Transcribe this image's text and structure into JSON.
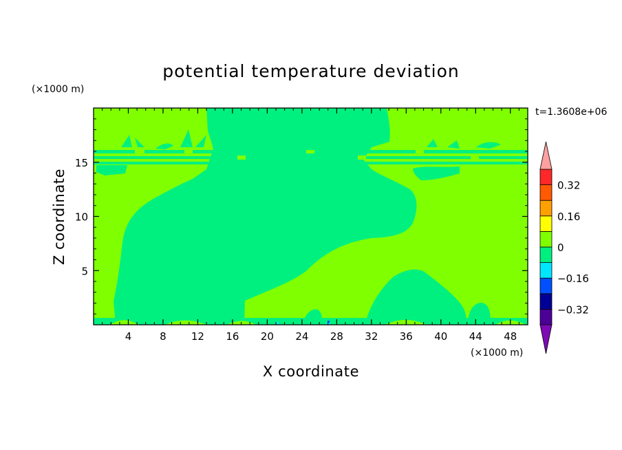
{
  "chart_data": {
    "type": "heatmap",
    "title": "potential temperature deviation",
    "xlabel": "X coordinate",
    "ylabel": "Z coordinate",
    "x_unit": "(×1000 m)",
    "y_unit": "(×1000 m)",
    "time_label": "t=1.3608e+06",
    "xlim": [
      0,
      50
    ],
    "ylim": [
      0,
      20
    ],
    "xticks": [
      4,
      8,
      12,
      16,
      20,
      24,
      28,
      32,
      36,
      40,
      44,
      48
    ],
    "yticks": [
      5,
      10,
      15
    ],
    "colorbar": {
      "levels": [
        -0.4,
        -0.32,
        -0.24,
        -0.16,
        -0.08,
        0,
        0.08,
        0.16,
        0.24,
        0.32,
        0.4
      ],
      "tick_values": [
        0.32,
        0.16,
        0,
        -0.16,
        -0.32
      ],
      "tick_labels": [
        "0.32",
        "0.16",
        "0",
        "−0.16",
        "−0.32"
      ],
      "colors": [
        "#4b0096",
        "#000096",
        "#0050ff",
        "#00e6ff",
        "#00f080",
        "#80ff00",
        "#ffff00",
        "#ffa000",
        "#ff5a00",
        "#ff2828"
      ],
      "under_color": "#7d0ab4",
      "over_color": "#ffa0a0"
    },
    "regions": [
      {
        "name": "background",
        "range": "0 to 0.08",
        "color": "#80ff00"
      },
      {
        "name": "main-cold-region",
        "range": "-0.08 to 0",
        "color": "#00f080"
      },
      {
        "name": "upper-layer-bands",
        "range": "-0.08 to 0",
        "color": "#00f080"
      },
      {
        "name": "surface-layer",
        "range": "-0.08 to 0",
        "color": "#00f080"
      }
    ]
  }
}
